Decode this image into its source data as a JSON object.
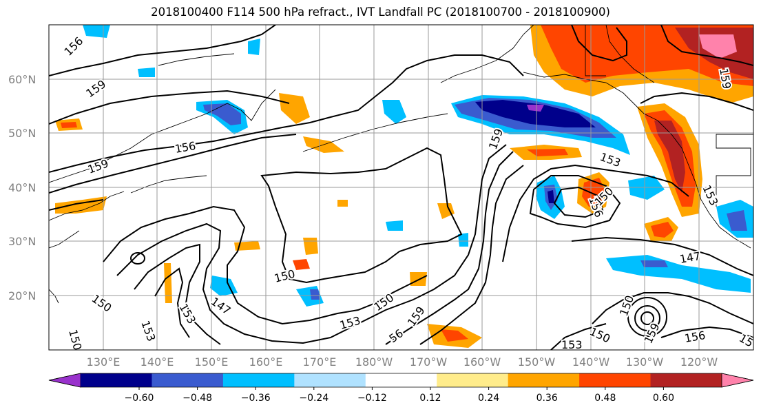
{
  "title": "2018100400 F114 500 hPa refract., IVT Landfall PC (2018100700 - 2018100900)",
  "map": {
    "lat_labels": [
      "60°N",
      "50°N",
      "40°N",
      "30°N",
      "20°N"
    ],
    "lon_labels": [
      "130°E",
      "140°E",
      "150°E",
      "160°E",
      "170°E",
      "180°W",
      "170°W",
      "160°W",
      "150°W",
      "140°W",
      "130°W",
      "120°W"
    ],
    "contour_labels": [
      "156",
      "159",
      "156",
      "159",
      "153",
      "150",
      "150",
      "153",
      "147",
      "150",
      "153",
      "156",
      "150",
      "159",
      "153",
      "156",
      "150",
      "153",
      "159",
      "150",
      "147",
      "150",
      "156",
      "15",
      "159",
      "153",
      "56"
    ],
    "colors": {
      "neg_060": "#9932cc",
      "neg_048": "#00008b",
      "neg_036": "#3a5bcf",
      "neg_024": "#00bfff",
      "neg_012": "#b0e2ff",
      "pos_012": "#ffec8b",
      "pos_024": "#ffa500",
      "pos_036": "#ff4500",
      "pos_048": "#b22222",
      "pos_060": "#ff82ab"
    }
  },
  "colorbar": {
    "ticks": [
      "−0.60",
      "−0.48",
      "−0.36",
      "−0.24",
      "−0.12",
      "0.12",
      "0.24",
      "0.36",
      "0.48",
      "0.60"
    ],
    "colors": [
      "#9932cc",
      "#00008b",
      "#3a5bcf",
      "#00bfff",
      "#b0e2ff",
      "#ffffff",
      "#ffec8b",
      "#ffa500",
      "#ff4500",
      "#b22222",
      "#ff82ab"
    ]
  }
}
